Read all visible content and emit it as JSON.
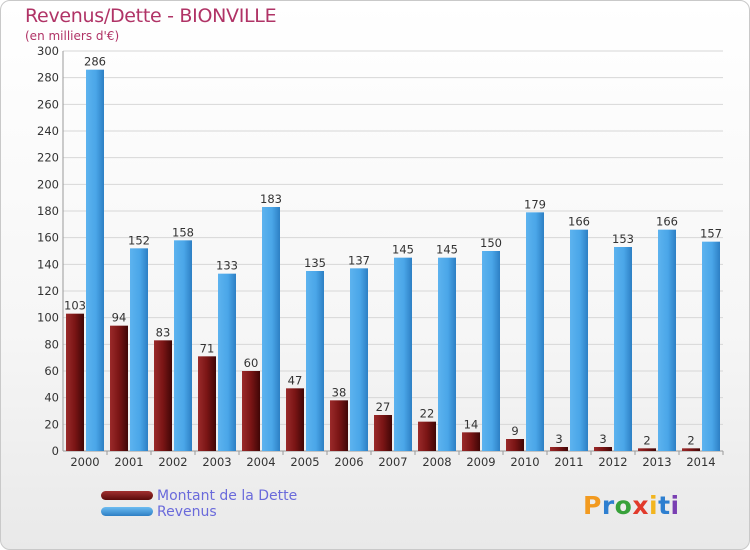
{
  "title": "Revenus/Dette - BIONVILLE",
  "subtitle": "(en milliers d'€)",
  "logo": {
    "text": "Proxiti",
    "letter_colors": [
      "#f29a1f",
      "#2e7fd0",
      "#37a13a",
      "#e13a2b",
      "#f2b51f",
      "#2e7fd0",
      "#7a3fb2"
    ]
  },
  "colors": {
    "dette": "#7a1515",
    "revenus": "#4aa6e8",
    "title": "#b03366",
    "legend_text": "#6a6adb"
  },
  "chart_data": {
    "type": "bar",
    "categories": [
      "2000",
      "2001",
      "2002",
      "2003",
      "2004",
      "2005",
      "2006",
      "2007",
      "2008",
      "2009",
      "2010",
      "2011",
      "2012",
      "2013",
      "2014"
    ],
    "series": [
      {
        "name": "Montant de la Dette",
        "values": [
          103,
          94,
          83,
          71,
          60,
          47,
          38,
          27,
          22,
          14,
          9,
          3,
          3,
          2,
          2
        ]
      },
      {
        "name": "Revenus",
        "values": [
          286,
          152,
          158,
          133,
          183,
          135,
          137,
          145,
          145,
          150,
          179,
          166,
          153,
          166,
          157
        ]
      }
    ],
    "title": "Revenus/Dette - BIONVILLE",
    "ylabel": "(en milliers d'€)",
    "ylim": [
      0,
      300
    ],
    "yticks": [
      0,
      20,
      40,
      60,
      80,
      100,
      120,
      140,
      160,
      180,
      200,
      220,
      240,
      260,
      280,
      300
    ],
    "grid": true,
    "legend_position": "bottom-left"
  }
}
